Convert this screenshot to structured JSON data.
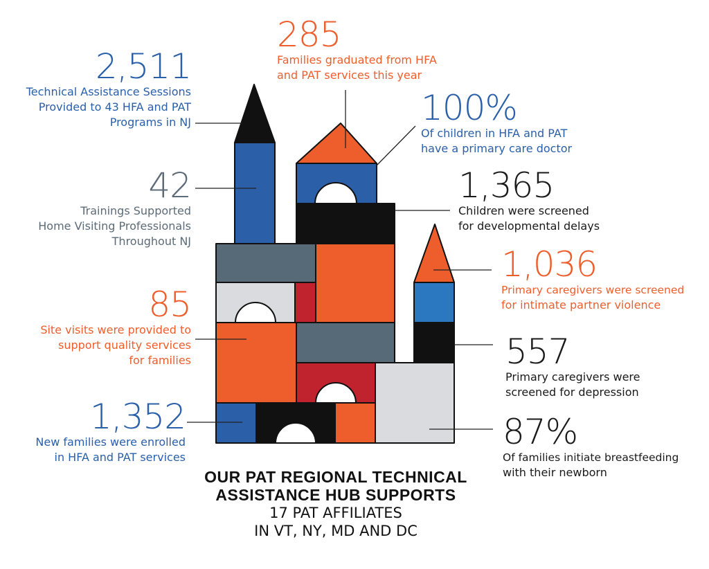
{
  "colors": {
    "blue": "#2a5faa",
    "orange": "#ee5e2c",
    "gray": "#5c6b77",
    "black": "#1a1a1a",
    "red": "#c0232e",
    "light_gray": "#d9dbdf"
  },
  "stats": [
    {
      "id": "ta-sessions",
      "number": "2,511",
      "lines": [
        "Technical Assistance Sessions",
        "Provided to 43 HFA and PAT",
        "Programs in NJ"
      ]
    },
    {
      "id": "trainings",
      "number": "42",
      "lines": [
        "Trainings Supported",
        "Home Visiting Professionals",
        "Throughout NJ"
      ]
    },
    {
      "id": "site-visits",
      "number": "85",
      "lines": [
        "Site visits were provided to",
        "support quality services",
        "for families"
      ]
    },
    {
      "id": "new-families",
      "number": "1,352",
      "lines": [
        "New families were enrolled",
        "in HFA and PAT services"
      ]
    },
    {
      "id": "graduated",
      "number": "285",
      "lines": [
        "Families graduated from HFA",
        "and PAT services this year"
      ]
    },
    {
      "id": "primary-care",
      "number": "100%",
      "lines": [
        "Of children in HFA and PAT",
        "have a primary care doctor"
      ]
    },
    {
      "id": "dev-screened",
      "number": "1,365",
      "lines": [
        "Children were screened",
        "for developmental delays"
      ]
    },
    {
      "id": "ipv-screened",
      "number": "1,036",
      "lines": [
        "Primary caregivers were screened",
        "for intimate partner violence"
      ]
    },
    {
      "id": "depression",
      "number": "557",
      "lines": [
        "Primary caregivers were",
        "screened for depression"
      ]
    },
    {
      "id": "breastfeeding",
      "number": "87%",
      "lines": [
        "Of families initiate breastfeeding",
        "with their newborn"
      ]
    }
  ],
  "footer": {
    "bold_line1": "OUR PAT REGIONAL TECHNICAL",
    "bold_line2": "ASSISTANCE HUB SUPPORTS",
    "line3": "17 PAT AFFILIATES",
    "line4": "IN VT, NY, MD AND DC"
  }
}
